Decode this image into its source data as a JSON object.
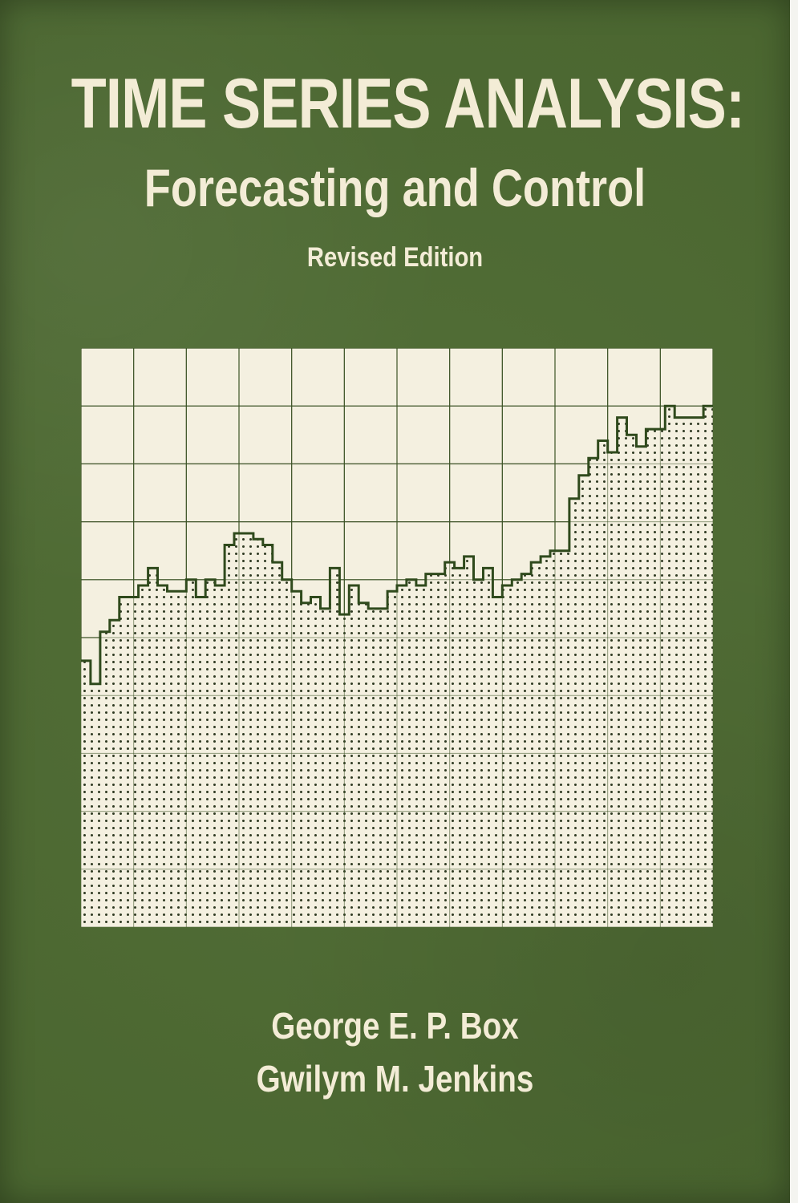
{
  "cover": {
    "title": "TIME SERIES ANALYSIS:",
    "subtitle": "Forecasting and Control",
    "edition": "Revised Edition",
    "authors": [
      "George E. P. Box",
      "Gwilym M. Jenkins"
    ]
  },
  "colors": {
    "cover_green": "#4e6b32",
    "cream": "#f3ecd6",
    "line_green": "#2f4a1c"
  },
  "chart_data": {
    "type": "area",
    "step": true,
    "fill_pattern": "dots",
    "grid": true,
    "grid_columns": 12,
    "grid_rows": 10,
    "xlim": [
      0,
      66
    ],
    "ylim": [
      0,
      10
    ],
    "values": [
      4.6,
      4.2,
      5.1,
      5.3,
      5.7,
      5.7,
      5.9,
      6.2,
      5.9,
      5.8,
      5.8,
      6.0,
      5.7,
      6.0,
      5.9,
      6.6,
      6.8,
      6.8,
      6.7,
      6.6,
      6.3,
      6.0,
      5.8,
      5.6,
      5.7,
      5.5,
      6.2,
      5.4,
      5.9,
      5.6,
      5.5,
      5.5,
      5.8,
      5.9,
      6.0,
      5.9,
      6.1,
      6.1,
      6.3,
      6.2,
      6.4,
      6.0,
      6.2,
      5.7,
      5.9,
      6.0,
      6.1,
      6.3,
      6.4,
      6.5,
      6.5,
      7.4,
      7.8,
      8.1,
      8.4,
      8.2,
      8.8,
      8.5,
      8.3,
      8.6,
      8.6,
      9.0,
      8.8,
      8.8,
      8.8,
      9.0
    ]
  }
}
